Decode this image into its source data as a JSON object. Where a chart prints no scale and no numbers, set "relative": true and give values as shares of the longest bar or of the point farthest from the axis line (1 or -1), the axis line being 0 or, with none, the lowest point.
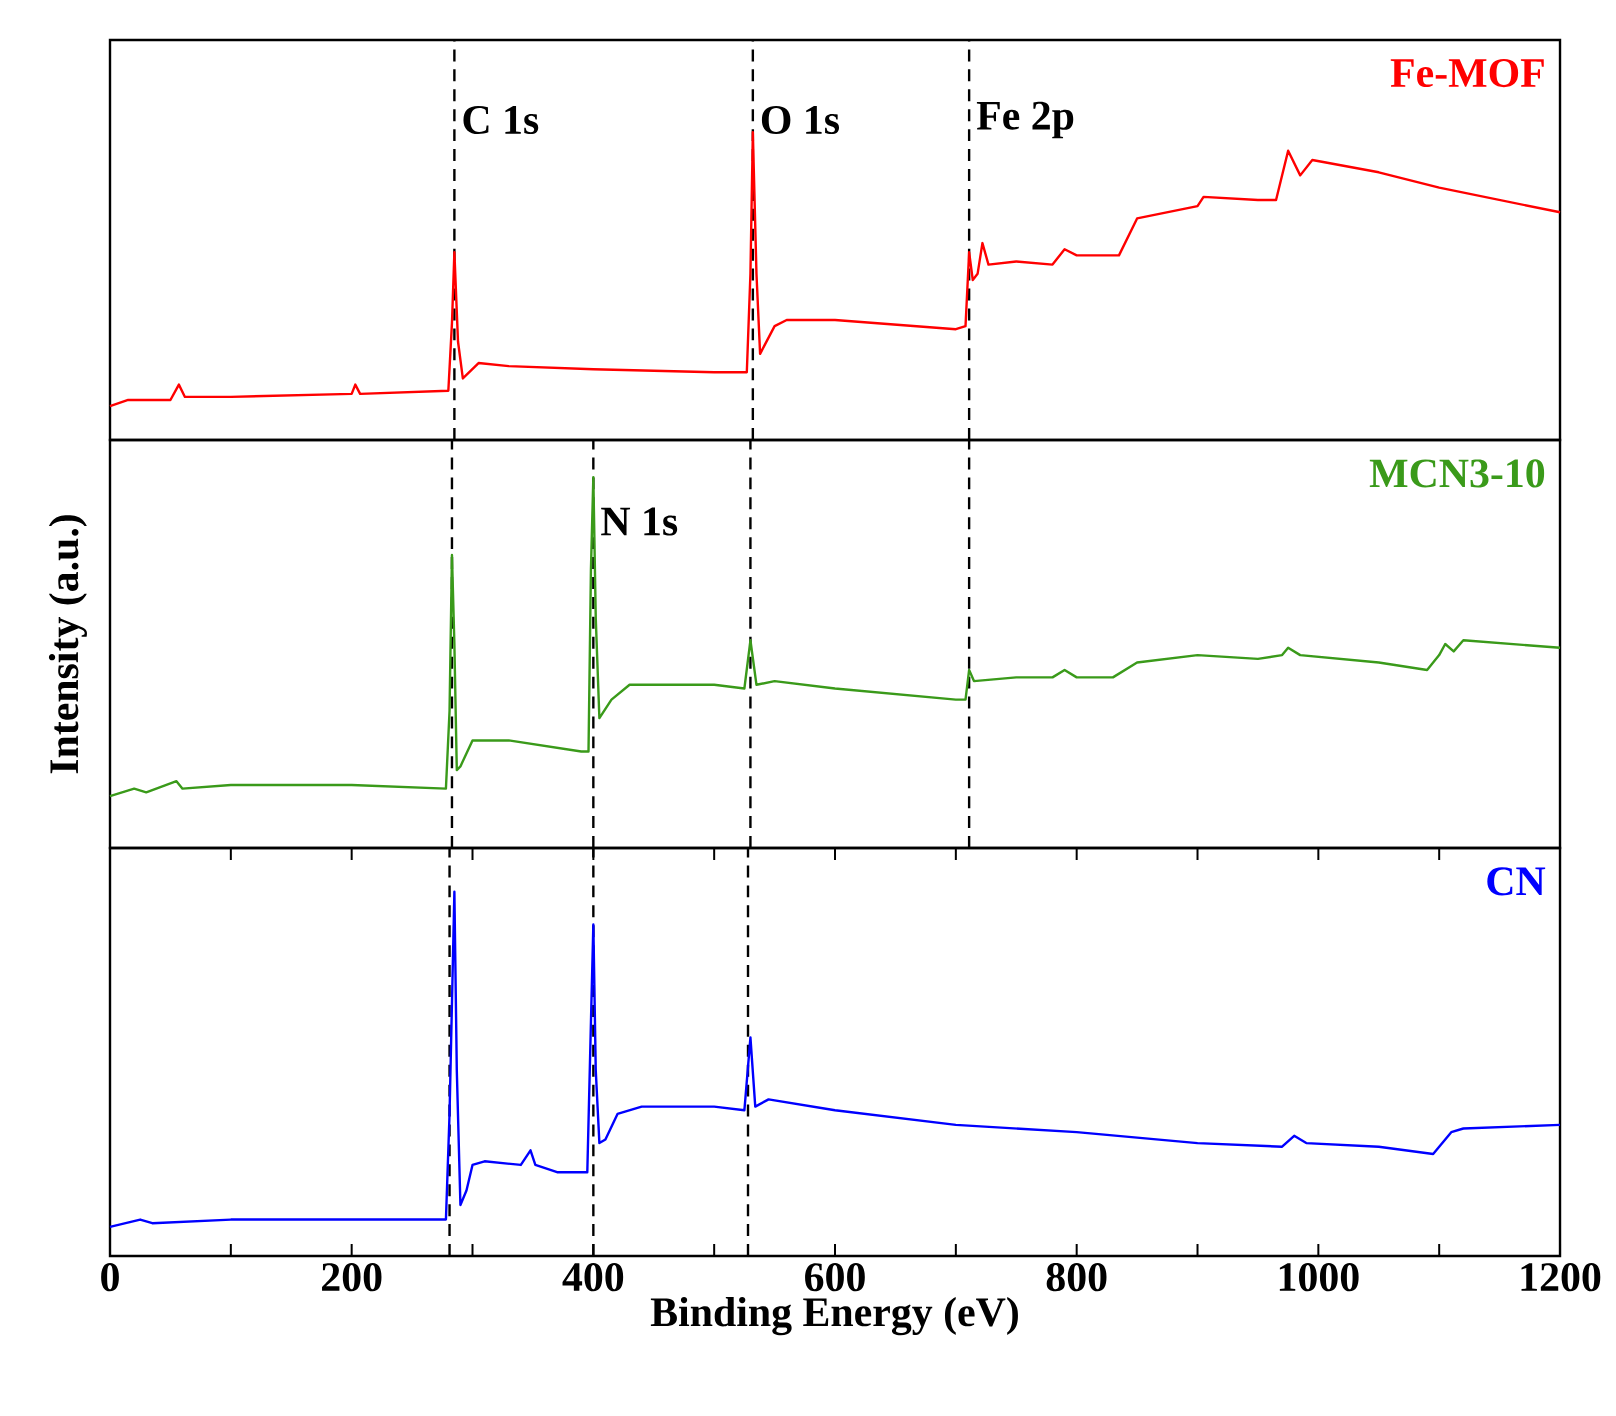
{
  "chart_data": [
    {
      "type": "line",
      "relative": true,
      "xlim": [
        0,
        1200
      ],
      "tick_labels": false,
      "series": [
        {
          "name": "Fe-MOF",
          "color": "#ff0000",
          "x": [
            0,
            15,
            50,
            57,
            62,
            100,
            200,
            203,
            207,
            280,
            283,
            285,
            288,
            292,
            305,
            330,
            400,
            500,
            527,
            530,
            532,
            535,
            538,
            550,
            560,
            600,
            700,
            708,
            711,
            714,
            718,
            722,
            727,
            750,
            780,
            790,
            800,
            835,
            850,
            900,
            905,
            950,
            965,
            975,
            985,
            995,
            1050,
            1100,
            1150,
            1200
          ],
          "values": [
            0.11,
            0.13,
            0.13,
            0.18,
            0.14,
            0.14,
            0.15,
            0.18,
            0.15,
            0.16,
            0.38,
            0.61,
            0.32,
            0.2,
            0.25,
            0.24,
            0.23,
            0.22,
            0.22,
            0.54,
            1.0,
            0.54,
            0.28,
            0.37,
            0.39,
            0.39,
            0.36,
            0.37,
            0.61,
            0.52,
            0.54,
            0.64,
            0.57,
            0.58,
            0.57,
            0.62,
            0.6,
            0.6,
            0.72,
            0.76,
            0.79,
            0.78,
            0.78,
            0.94,
            0.86,
            0.91,
            0.87,
            0.82,
            0.78,
            0.74
          ]
        }
      ],
      "ref_lines": [
        {
          "axis": "x",
          "value": 285,
          "label": "C 1s",
          "color": "#000000",
          "line_style": "dashed"
        },
        {
          "axis": "x",
          "value": 532,
          "label": "O 1s",
          "color": "#000000",
          "line_style": "dashed"
        },
        {
          "axis": "x",
          "value": 711,
          "label": "Fe 2p",
          "color": "#000000",
          "line_style": "dashed"
        }
      ]
    },
    {
      "type": "line",
      "relative": true,
      "xlim": [
        0,
        1200
      ],
      "tick_labels": false,
      "ylabel": "Intensity (a.u.)",
      "series": [
        {
          "name": "MCN3-10",
          "color": "#3a9a1a",
          "x": [
            0,
            20,
            30,
            55,
            60,
            100,
            200,
            278,
            281,
            283,
            285,
            287,
            290,
            300,
            330,
            390,
            396,
            398,
            400,
            402,
            405,
            415,
            430,
            500,
            525,
            530,
            535,
            550,
            600,
            700,
            708,
            711,
            715,
            750,
            780,
            790,
            800,
            830,
            850,
            900,
            950,
            970,
            975,
            985,
            1050,
            1090,
            1100,
            1105,
            1112,
            1120,
            1200
          ],
          "values": [
            0.14,
            0.16,
            0.15,
            0.18,
            0.16,
            0.17,
            0.17,
            0.16,
            0.37,
            0.79,
            0.55,
            0.21,
            0.22,
            0.29,
            0.29,
            0.26,
            0.26,
            0.75,
            1.0,
            0.62,
            0.35,
            0.4,
            0.44,
            0.44,
            0.43,
            0.56,
            0.44,
            0.45,
            0.43,
            0.4,
            0.4,
            0.48,
            0.45,
            0.46,
            0.46,
            0.48,
            0.46,
            0.46,
            0.5,
            0.52,
            0.51,
            0.52,
            0.54,
            0.52,
            0.5,
            0.48,
            0.52,
            0.55,
            0.53,
            0.56,
            0.54
          ]
        }
      ],
      "ref_lines": [
        {
          "axis": "x",
          "value": 283,
          "color": "#000000",
          "line_style": "dashed"
        },
        {
          "axis": "x",
          "value": 400,
          "label": "N 1s",
          "color": "#000000",
          "line_style": "dashed"
        },
        {
          "axis": "x",
          "value": 530,
          "color": "#000000",
          "line_style": "dashed"
        },
        {
          "axis": "x",
          "value": 711,
          "color": "#000000",
          "line_style": "dashed"
        }
      ]
    },
    {
      "type": "line",
      "relative": true,
      "xlim": [
        0,
        1200
      ],
      "tick_labels": "x",
      "xlabel": "Binding Energy (eV)",
      "xticks": [
        0,
        {
          "value": 100,
          "label": null
        },
        200,
        {
          "value": 300,
          "label": null
        },
        400,
        {
          "value": 500,
          "label": null
        },
        600,
        {
          "value": 700,
          "label": null
        },
        800,
        {
          "value": 900,
          "label": null
        },
        1000,
        {
          "value": 1100,
          "label": null
        },
        1200
      ],
      "series": [
        {
          "name": "CN",
          "color": "#0000ff",
          "x": [
            0,
            25,
            35,
            100,
            200,
            278,
            281,
            285,
            287,
            290,
            295,
            300,
            310,
            340,
            348,
            352,
            370,
            395,
            398,
            400,
            402,
            405,
            410,
            420,
            440,
            500,
            525,
            530,
            534,
            545,
            600,
            700,
            800,
            900,
            970,
            980,
            990,
            1050,
            1095,
            1110,
            1120,
            1200
          ],
          "values": [
            0.08,
            0.1,
            0.09,
            0.1,
            0.1,
            0.1,
            0.39,
            1.0,
            0.51,
            0.14,
            0.18,
            0.25,
            0.26,
            0.25,
            0.29,
            0.25,
            0.23,
            0.23,
            0.64,
            0.91,
            0.51,
            0.31,
            0.32,
            0.39,
            0.41,
            0.41,
            0.4,
            0.6,
            0.41,
            0.43,
            0.4,
            0.36,
            0.34,
            0.31,
            0.3,
            0.33,
            0.31,
            0.3,
            0.28,
            0.34,
            0.35,
            0.36
          ]
        }
      ],
      "ref_lines": [
        {
          "axis": "x",
          "value": 281,
          "color": "#000000",
          "line_style": "dashed"
        },
        {
          "axis": "x",
          "value": 400,
          "color": "#000000",
          "line_style": "dashed"
        },
        {
          "axis": "x",
          "value": 528,
          "color": "#000000",
          "line_style": "dashed"
        }
      ]
    }
  ]
}
